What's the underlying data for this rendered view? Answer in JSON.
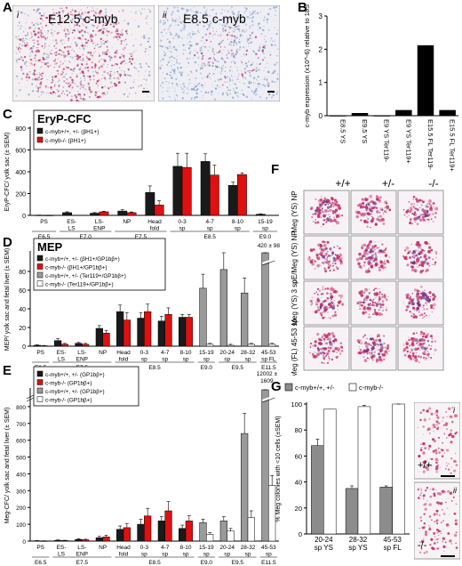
{
  "panel_letters": {
    "A": "A",
    "B": "B",
    "C": "C",
    "D": "D",
    "E": "E",
    "F": "F",
    "G": "G"
  },
  "panel_a": {
    "image_i": {
      "roman": "i",
      "label": "E12.5 c-myb"
    },
    "image_ii": {
      "roman": "ii",
      "label": "E8.5 c-myb"
    }
  },
  "panel_f": {
    "columns": [
      "+/+",
      "+/-",
      "-/-"
    ],
    "rows": [
      "Meg (YS) NP",
      "pE/Meg (YS) NP",
      "Meg (YS) 3 sp",
      "Meg (FL) 45-53 sp"
    ]
  },
  "side_images": {
    "i": {
      "roman": "i",
      "genotype": "+/+"
    },
    "ii": {
      "roman": "ii",
      "genotype": "-/-"
    }
  },
  "colors": {
    "black": "#1a1a1a",
    "red": "#e01010",
    "gray": "#9a9a9a",
    "white": "#ffffff",
    "stain_red": "#c8336a",
    "stain_blue": "#8aa2c8"
  },
  "chart_data": [
    {
      "id": "B",
      "type": "bar",
      "ylabel": "c-myb expression (x10^-6) relative to 18S",
      "yticks": [
        "0",
        "1",
        "2",
        "3"
      ],
      "ylim": [
        0,
        3
      ],
      "categories": [
        "E8.5 YS",
        "E9.5 YS",
        "E9 YS Ter119-",
        "E9 YS Ter119+",
        "E15.5 FL Ter119-",
        "E15.5 FL Ter119+"
      ],
      "values": [
        0.0,
        0.08,
        0.0,
        0.17,
        2.12,
        0.17
      ]
    },
    {
      "id": "C",
      "type": "bar",
      "title": "EryP-CFC",
      "ylabel": "EryP-CFC/ yolk sac (± SEM)",
      "yticks": [
        "0",
        "200",
        "400",
        "600",
        "800"
      ],
      "ylim": [
        0,
        800
      ],
      "categories": [
        "PS",
        "ES-LS",
        "LS-ENP",
        "NP",
        "Head fold",
        "0-3 sp",
        "4-7 sp",
        "8-10 sp",
        "15-19 sp"
      ],
      "series": [
        {
          "name": "c-myb+/+, +/- (βH1+)",
          "color": "#1a1a1a",
          "values": [
            2,
            25,
            20,
            40,
            210,
            450,
            495,
            275,
            10
          ],
          "err": [
            1,
            8,
            6,
            12,
            60,
            120,
            70,
            30,
            4
          ]
        },
        {
          "name": "c-myb-/- (βH1+)",
          "color": "#e01010",
          "values": [
            1,
            null,
            33,
            25,
            95,
            440,
            370,
            375,
            null
          ],
          "err": [
            1,
            null,
            5,
            6,
            40,
            130,
            90,
            15,
            null
          ]
        }
      ],
      "stages": [
        {
          "label": "E6.5",
          "from": 0,
          "to": 0
        },
        {
          "label": "E7.0",
          "from": 1,
          "to": 2
        },
        {
          "label": "E7.5",
          "from": 3,
          "to": 4
        },
        {
          "label": "E8.5",
          "from": 5,
          "to": 7
        },
        {
          "label": "E9.0",
          "from": 8,
          "to": 8
        }
      ]
    },
    {
      "id": "D",
      "type": "bar",
      "title": "MEP",
      "ylabel": "MEP/ yolk sac and fetal liver (± SEM)",
      "yticks": [
        "0",
        "20",
        "40",
        "60",
        "80"
      ],
      "ylim": [
        0,
        100
      ],
      "break_label": "420 ± 98",
      "categories": [
        "PS",
        "ES-LS",
        "LS-ENP",
        "NP",
        "Head fold",
        "0-3 sp",
        "4-7 sp",
        "8-10 sp",
        "15-19 sp",
        "20-24 sp",
        "28-32 sp",
        "45-53 sp FL"
      ],
      "series": [
        {
          "name": "c-myb+/+, +/- (βH1+/GP1bβ+)",
          "color": "#1a1a1a",
          "values": [
            1,
            6,
            3,
            19,
            37,
            30,
            27,
            31,
            null,
            null,
            null,
            null
          ],
          "err": [
            0.5,
            2,
            1,
            3,
            7,
            6,
            5,
            3,
            null,
            null,
            null,
            null
          ]
        },
        {
          "name": "c-myb-/- (βH1+/GP1bβ+)",
          "color": "#e01010",
          "values": [
            0.5,
            2,
            2,
            14,
            28,
            37,
            34,
            31,
            null,
            null,
            null,
            null
          ],
          "err": [
            0.3,
            1,
            1,
            3,
            8,
            8,
            7,
            3,
            null,
            null,
            null,
            null
          ]
        },
        {
          "name": "c-myb+/+, +/- (Ter119+/GP1bβ+)",
          "color": "#9a9a9a",
          "values": [
            null,
            null,
            null,
            null,
            null,
            null,
            null,
            null,
            62,
            82,
            57,
            100
          ],
          "err": [
            null,
            null,
            null,
            null,
            null,
            null,
            null,
            null,
            15,
            18,
            16,
            8
          ]
        },
        {
          "name": "c-myb-/- (Ter119+/GP1bβ+)",
          "color": "#ffffff",
          "values": [
            null,
            null,
            null,
            null,
            null,
            null,
            null,
            null,
            2,
            1,
            2,
            2
          ],
          "err": [
            null,
            null,
            null,
            null,
            null,
            null,
            null,
            null,
            1,
            1,
            1,
            1
          ]
        }
      ],
      "stages": [
        {
          "label": "E6.5",
          "from": 0,
          "to": 0
        },
        {
          "label": "E7.5",
          "from": 1,
          "to": 3
        },
        {
          "label": "E8.5",
          "from": 4,
          "to": 7
        },
        {
          "label": "E9.0",
          "from": 8,
          "to": 8
        },
        {
          "label": "E9.5",
          "from": 9,
          "to": 10
        },
        {
          "label": "E11.5",
          "from": 11,
          "to": 11
        }
      ]
    },
    {
      "id": "E",
      "type": "bar",
      "ylabel": "Meg-CFC/ yolk sac and fetal liver (± SEM)",
      "yticks": [
        "0",
        "100",
        "200",
        "300",
        "400",
        "500",
        "600",
        "700",
        "800"
      ],
      "ylim": [
        0,
        900
      ],
      "break_label": "12002 ± 1609",
      "categories": [
        "PS",
        "ES-LS",
        "LS-ENP",
        "NP",
        "Head fold",
        "0-3 sp",
        "4-7 sp",
        "8-10 sp",
        "15-19 sp",
        "20-24 sp",
        "28-32 sp",
        "45-53 sp"
      ],
      "series": [
        {
          "name": "c-myb+/+, +/- (GP1bβ+)",
          "color": "#1a1a1a",
          "values": [
            2,
            5,
            10,
            20,
            70,
            100,
            120,
            75,
            null,
            null,
            null,
            null
          ],
          "err": [
            1,
            2,
            4,
            8,
            20,
            30,
            25,
            20,
            null,
            null,
            null,
            null
          ]
        },
        {
          "name": "c-myb-/- (GP1bβ+)",
          "color": "#e01010",
          "values": [
            1,
            3,
            8,
            25,
            80,
            150,
            180,
            120,
            null,
            null,
            null,
            null
          ],
          "err": [
            1,
            2,
            3,
            10,
            25,
            45,
            55,
            30,
            null,
            null,
            null,
            null
          ]
        },
        {
          "name": "c-myb+/+, +/- (GP1bβ+)",
          "color": "#9a9a9a",
          "values": [
            null,
            null,
            null,
            null,
            null,
            null,
            null,
            null,
            110,
            120,
            640,
            900
          ],
          "err": [
            null,
            null,
            null,
            null,
            null,
            null,
            null,
            null,
            20,
            25,
            120,
            30
          ]
        },
        {
          "name": "c-myb-/- (GP1bβ+)",
          "color": "#ffffff",
          "values": [
            null,
            null,
            null,
            null,
            null,
            null,
            null,
            null,
            40,
            60,
            140,
            330
          ],
          "err": [
            null,
            null,
            null,
            null,
            null,
            null,
            null,
            null,
            10,
            15,
            40,
            60
          ]
        }
      ],
      "stages": [
        {
          "label": "E6.5",
          "from": 0,
          "to": 0
        },
        {
          "label": "E7.5",
          "from": 1,
          "to": 3
        },
        {
          "label": "E8.5",
          "from": 4,
          "to": 7
        },
        {
          "label": "E9.0",
          "from": 8,
          "to": 8
        },
        {
          "label": "E9.5",
          "from": 9,
          "to": 10
        },
        {
          "label": "E11.5",
          "from": 11,
          "to": 11
        }
      ]
    },
    {
      "id": "G",
      "type": "bar",
      "ylabel": "% Meg colonies with <10 cells (±SEM)",
      "yticks": [
        "0",
        "20",
        "40",
        "60",
        "80",
        "100"
      ],
      "ylim": [
        0,
        100
      ],
      "categories": [
        "20-24 sp YS",
        "28-32 sp YS",
        "45-53 sp FL"
      ],
      "series": [
        {
          "name": "c-myb+/+, +/-",
          "color": "#8c8c8c",
          "values": [
            68,
            35,
            36
          ],
          "err": [
            5,
            2,
            1
          ]
        },
        {
          "name": "c-myb-/-",
          "color": "#ffffff",
          "values": [
            96,
            98,
            100
          ],
          "err": [
            0,
            1,
            0.5
          ]
        }
      ]
    }
  ]
}
